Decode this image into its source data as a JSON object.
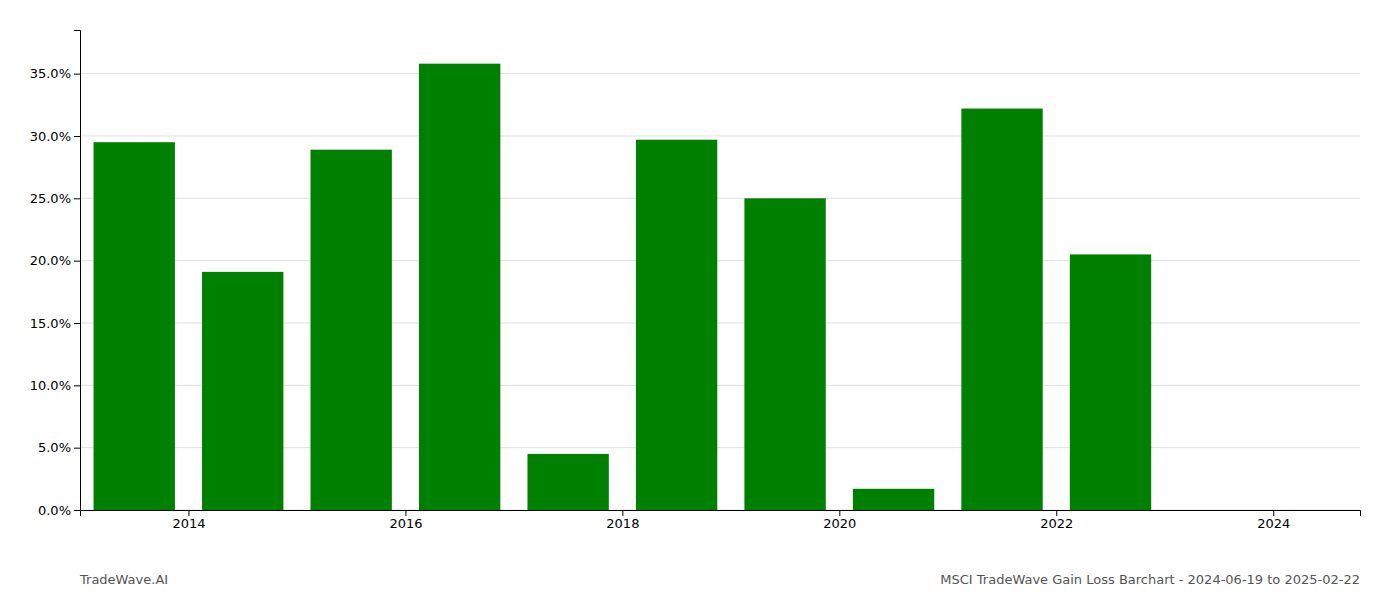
{
  "chart_data": {
    "type": "bar",
    "x": [
      2013.5,
      2014.5,
      2015.5,
      2016.5,
      2017.5,
      2018.5,
      2019.5,
      2020.5,
      2021.5,
      2022.5,
      2023.5
    ],
    "values": [
      0.295,
      0.191,
      0.289,
      0.358,
      0.045,
      0.297,
      0.25,
      0.017,
      0.322,
      0.205,
      0.0
    ],
    "color": "#008000",
    "xlim": [
      2013.0,
      2024.8
    ],
    "xticks": [
      2014,
      2016,
      2018,
      2020,
      2022,
      2024
    ],
    "ylim": [
      0.0,
      0.385
    ],
    "yticks": [
      {
        "value": 0.0,
        "label": "0.0%"
      },
      {
        "value": 0.05,
        "label": "5.0%"
      },
      {
        "value": 0.1,
        "label": "10.0%"
      },
      {
        "value": 0.15,
        "label": "15.0%"
      },
      {
        "value": 0.2,
        "label": "20.0%"
      },
      {
        "value": 0.25,
        "label": "25.0%"
      },
      {
        "value": 0.3,
        "label": "30.0%"
      },
      {
        "value": 0.35,
        "label": "35.0%"
      }
    ],
    "grid": true,
    "annotations": [
      "TradeWave.AI",
      "MSCI TradeWave Gain Loss Barchart - 2024-06-19 to 2025-02-22"
    ]
  }
}
